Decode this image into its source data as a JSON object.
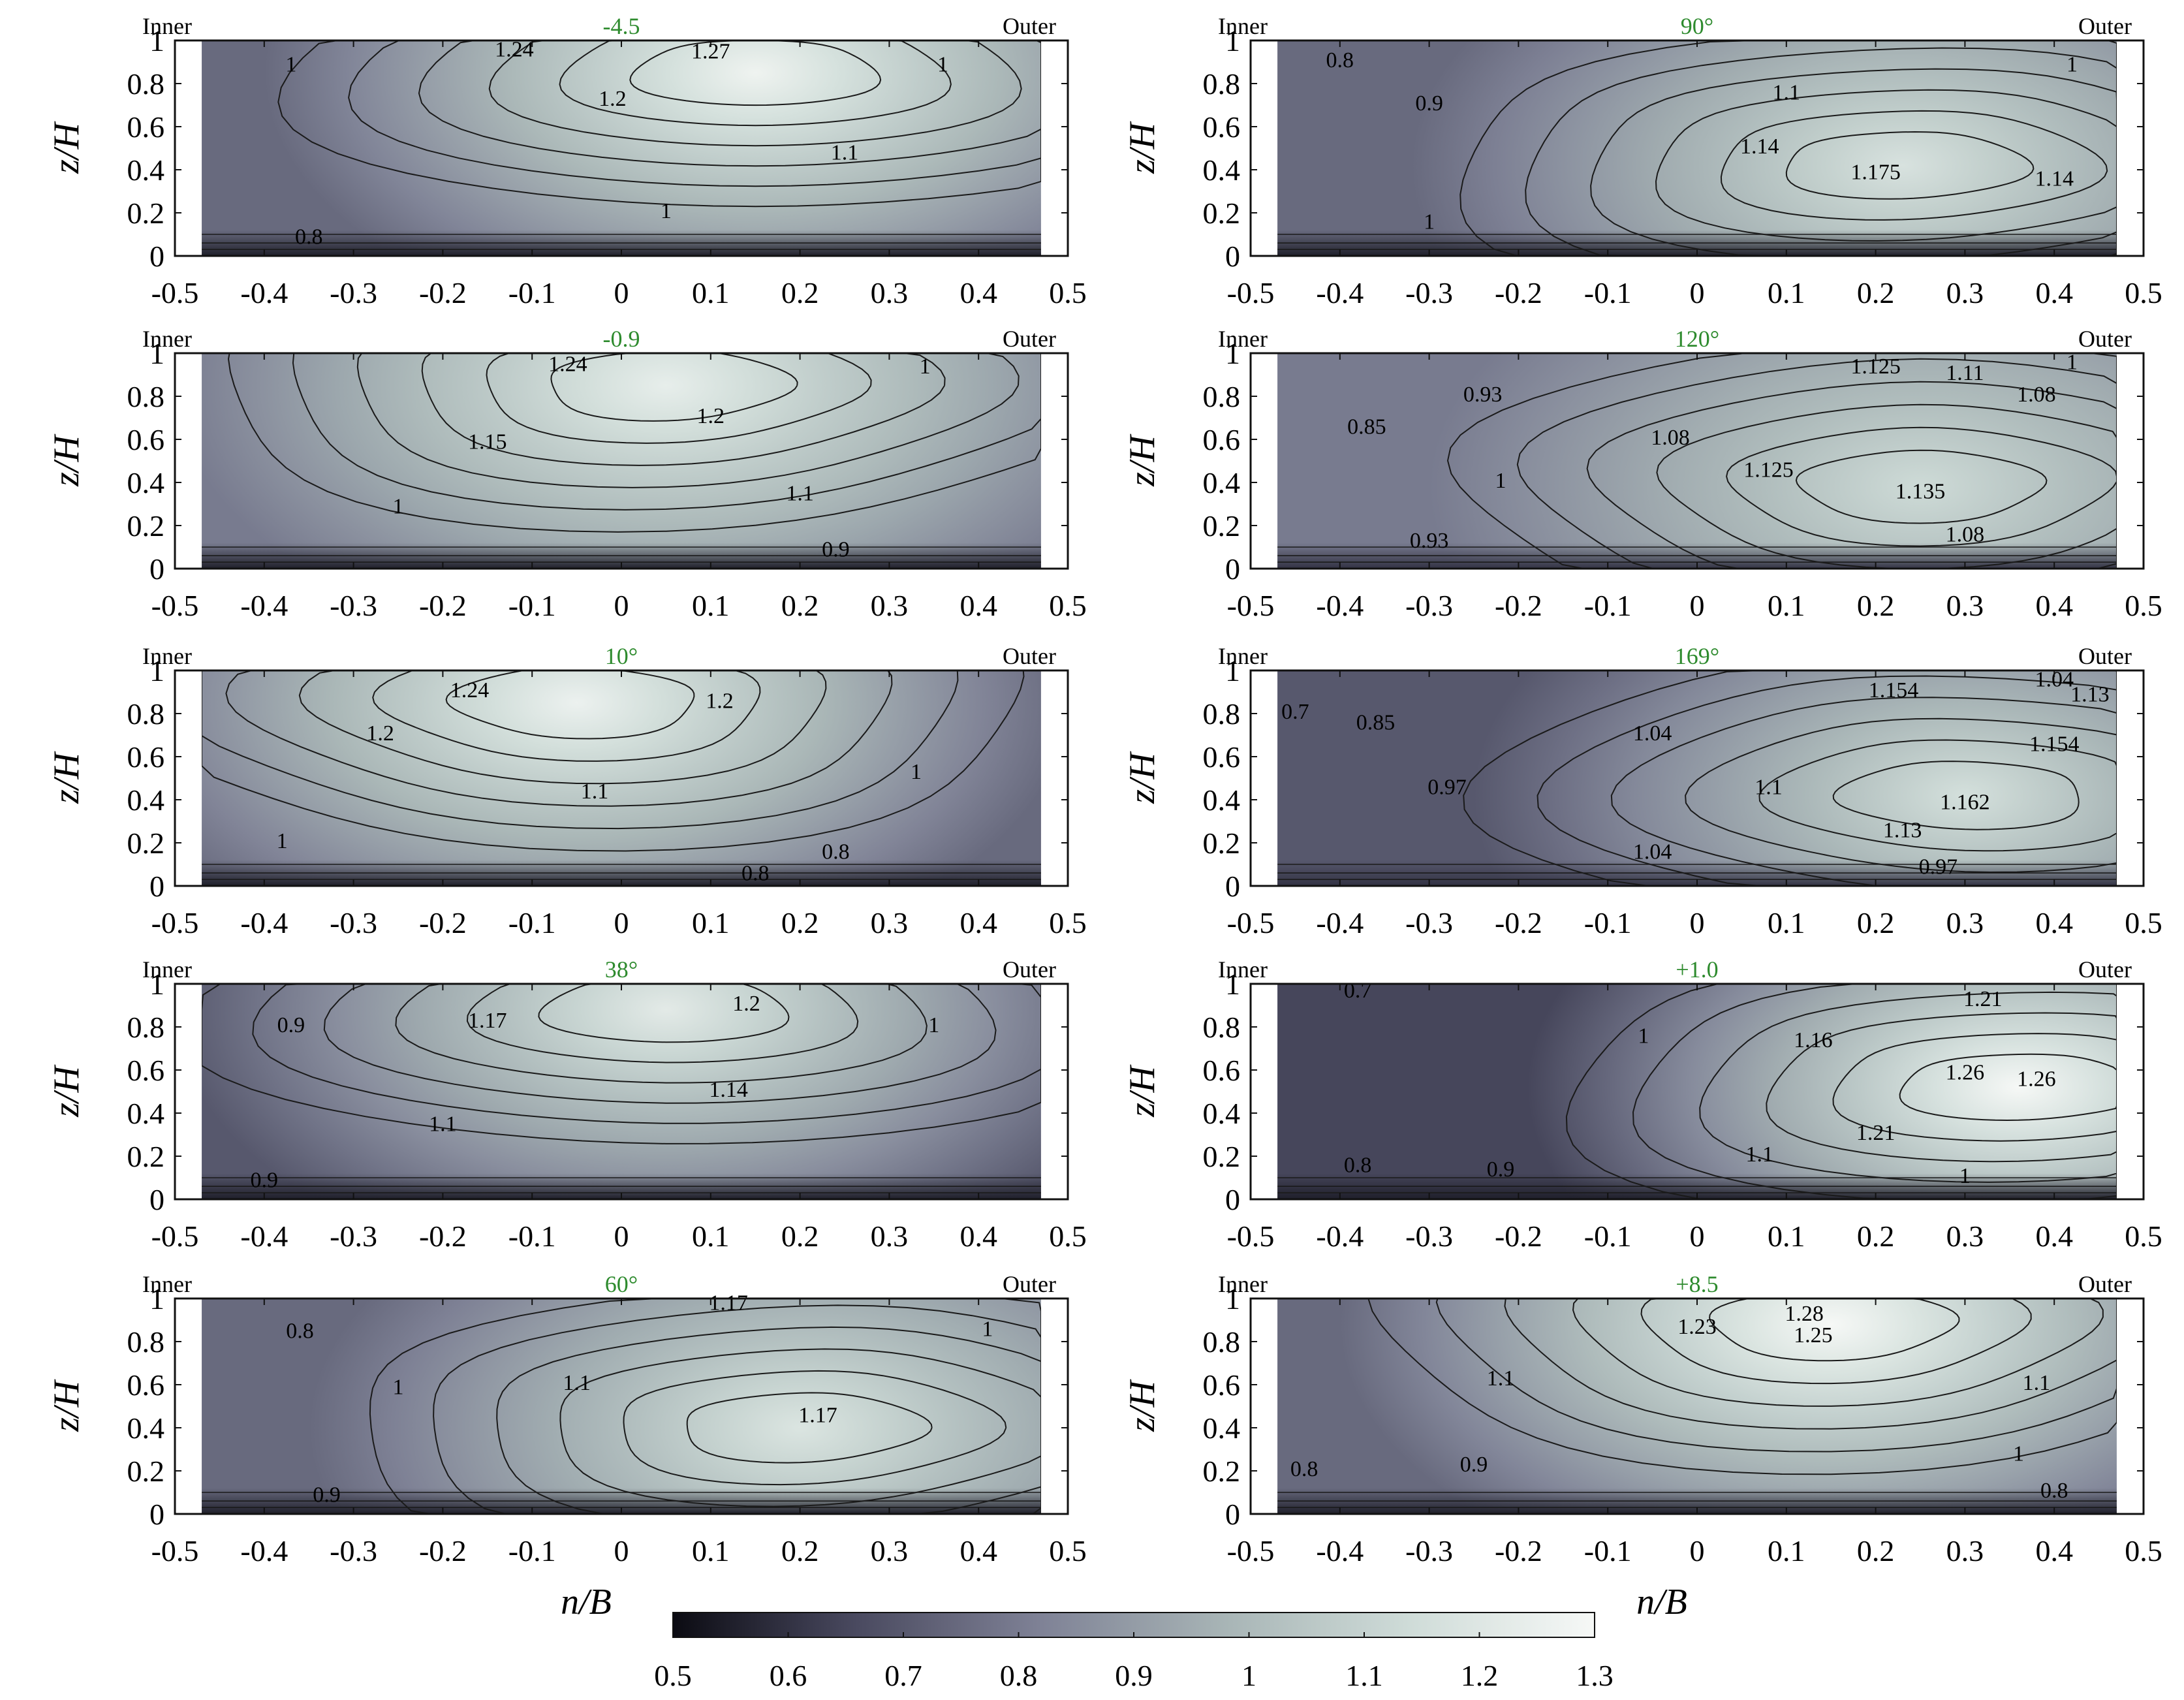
{
  "chart_data": {
    "type": "heatmap",
    "side_labels": {
      "left": "Inner",
      "right": "Outer"
    },
    "xlabel": "n/B",
    "ylabel": "z/H",
    "xlim": [
      -0.5,
      0.5
    ],
    "ylim": [
      0,
      1
    ],
    "x_ticks": [
      "-0.5",
      "-0.4",
      "-0.3",
      "-0.2",
      "-0.1",
      "0",
      "0.1",
      "0.2",
      "0.3",
      "0.4",
      "0.5"
    ],
    "y_ticks": [
      "0",
      "0.2",
      "0.4",
      "0.6",
      "0.8",
      "1"
    ],
    "title_color": "#2e8b2e",
    "colorbar": {
      "range": [
        0.5,
        1.3
      ],
      "ticks": [
        "0.5",
        "0.6",
        "0.7",
        "0.8",
        "0.9",
        "1",
        "1.1",
        "1.2",
        "1.3"
      ],
      "colors": [
        "#0b0b12",
        "#4a4a60",
        "#7f8296",
        "#a8b5b6",
        "#cfdcd8",
        "#f6f8f6"
      ]
    },
    "panels": [
      {
        "title": "-4.5",
        "core_x": 0.15,
        "core_z": 0.85,
        "core_value": 1.27,
        "edge_value": 0.75,
        "bed_value": 0.55,
        "contour_labels": [
          {
            "text": "1.24",
            "x": -0.12,
            "z": 0.95
          },
          {
            "text": "1.27",
            "x": 0.1,
            "z": 0.94
          },
          {
            "text": "1",
            "x": -0.37,
            "z": 0.88
          },
          {
            "text": "1",
            "x": 0.36,
            "z": 0.88
          },
          {
            "text": "1.2",
            "x": -0.01,
            "z": 0.72
          },
          {
            "text": "1.1",
            "x": 0.25,
            "z": 0.47
          },
          {
            "text": "1",
            "x": 0.05,
            "z": 0.2
          },
          {
            "text": "0.8",
            "x": -0.35,
            "z": 0.08
          }
        ]
      },
      {
        "title": "90°",
        "core_x": 0.23,
        "core_z": 0.42,
        "core_value": 1.175,
        "edge_value": 0.75,
        "bed_value": 0.55,
        "contour_labels": [
          {
            "text": "0.8",
            "x": -0.4,
            "z": 0.9
          },
          {
            "text": "0.9",
            "x": -0.3,
            "z": 0.7
          },
          {
            "text": "1.1",
            "x": 0.1,
            "z": 0.75
          },
          {
            "text": "1.14",
            "x": 0.07,
            "z": 0.5
          },
          {
            "text": "1.175",
            "x": 0.2,
            "z": 0.38
          },
          {
            "text": "1.14",
            "x": 0.4,
            "z": 0.35
          },
          {
            "text": "1",
            "x": 0.42,
            "z": 0.88
          },
          {
            "text": "1",
            "x": -0.3,
            "z": 0.15
          }
        ]
      },
      {
        "title": "-0.9",
        "core_x": 0.05,
        "core_z": 0.85,
        "core_value": 1.24,
        "edge_value": 0.8,
        "bed_value": 0.55,
        "contour_labels": [
          {
            "text": "1.24",
            "x": -0.06,
            "z": 0.94
          },
          {
            "text": "1.2",
            "x": 0.1,
            "z": 0.7
          },
          {
            "text": "1.15",
            "x": -0.15,
            "z": 0.58
          },
          {
            "text": "1.1",
            "x": 0.2,
            "z": 0.34
          },
          {
            "text": "1",
            "x": -0.25,
            "z": 0.28
          },
          {
            "text": "1",
            "x": 0.34,
            "z": 0.93
          },
          {
            "text": "0.9",
            "x": 0.24,
            "z": 0.08
          }
        ]
      },
      {
        "title": "120°",
        "core_x": 0.25,
        "core_z": 0.38,
        "core_value": 1.135,
        "edge_value": 0.8,
        "bed_value": 0.6,
        "contour_labels": [
          {
            "text": "0.85",
            "x": -0.37,
            "z": 0.65
          },
          {
            "text": "0.93",
            "x": -0.24,
            "z": 0.8
          },
          {
            "text": "1.125",
            "x": 0.2,
            "z": 0.93
          },
          {
            "text": "1.11",
            "x": 0.3,
            "z": 0.9
          },
          {
            "text": "1.08",
            "x": 0.38,
            "z": 0.8
          },
          {
            "text": "1.08",
            "x": -0.03,
            "z": 0.6
          },
          {
            "text": "1.125",
            "x": 0.08,
            "z": 0.45
          },
          {
            "text": "1.135",
            "x": 0.25,
            "z": 0.35
          },
          {
            "text": "1",
            "x": -0.22,
            "z": 0.4
          },
          {
            "text": "0.93",
            "x": -0.3,
            "z": 0.12
          },
          {
            "text": "1.08",
            "x": 0.3,
            "z": 0.15
          },
          {
            "text": "1",
            "x": 0.42,
            "z": 0.95
          }
        ]
      },
      {
        "title": "10°",
        "core_x": -0.05,
        "core_z": 0.85,
        "core_value": 1.26,
        "edge_value": 0.75,
        "bed_value": 0.55,
        "contour_labels": [
          {
            "text": "1.24",
            "x": -0.17,
            "z": 0.9
          },
          {
            "text": "1.2",
            "x": 0.11,
            "z": 0.85
          },
          {
            "text": "1.2",
            "x": -0.27,
            "z": 0.7
          },
          {
            "text": "1.1",
            "x": -0.03,
            "z": 0.43
          },
          {
            "text": "1",
            "x": 0.33,
            "z": 0.52
          },
          {
            "text": "1",
            "x": -0.38,
            "z": 0.2
          },
          {
            "text": "0.8",
            "x": 0.24,
            "z": 0.15
          },
          {
            "text": "0.8",
            "x": 0.15,
            "z": 0.05
          }
        ]
      },
      {
        "title": "169°",
        "core_x": 0.3,
        "core_z": 0.42,
        "core_value": 1.162,
        "edge_value": 0.7,
        "bed_value": 0.6,
        "contour_labels": [
          {
            "text": "0.7",
            "x": -0.45,
            "z": 0.8
          },
          {
            "text": "0.85",
            "x": -0.36,
            "z": 0.75
          },
          {
            "text": "0.97",
            "x": -0.28,
            "z": 0.45
          },
          {
            "text": "1.04",
            "x": -0.05,
            "z": 0.7
          },
          {
            "text": "1.1",
            "x": 0.08,
            "z": 0.45
          },
          {
            "text": "1.154",
            "x": 0.22,
            "z": 0.9
          },
          {
            "text": "1.04",
            "x": 0.4,
            "z": 0.95
          },
          {
            "text": "1.13",
            "x": 0.44,
            "z": 0.88
          },
          {
            "text": "1.154",
            "x": 0.4,
            "z": 0.65
          },
          {
            "text": "1.162",
            "x": 0.3,
            "z": 0.38
          },
          {
            "text": "1.13",
            "x": 0.23,
            "z": 0.25
          },
          {
            "text": "1.04",
            "x": -0.05,
            "z": 0.15
          },
          {
            "text": "0.97",
            "x": 0.27,
            "z": 0.08
          }
        ]
      },
      {
        "title": "38°",
        "core_x": 0.05,
        "core_z": 0.88,
        "core_value": 1.22,
        "edge_value": 0.7,
        "bed_value": 0.55,
        "contour_labels": [
          {
            "text": "0.9",
            "x": -0.37,
            "z": 0.8
          },
          {
            "text": "1.17",
            "x": -0.15,
            "z": 0.82
          },
          {
            "text": "1.2",
            "x": 0.14,
            "z": 0.9
          },
          {
            "text": "1",
            "x": 0.35,
            "z": 0.8
          },
          {
            "text": "1.14",
            "x": 0.12,
            "z": 0.5
          },
          {
            "text": "1.1",
            "x": -0.2,
            "z": 0.34
          },
          {
            "text": "0.9",
            "x": -0.4,
            "z": 0.08
          }
        ]
      },
      {
        "title": "+1.0",
        "core_x": 0.36,
        "core_z": 0.52,
        "core_value": 1.3,
        "edge_value": 0.65,
        "bed_value": 0.55,
        "contour_labels": [
          {
            "text": "0.7",
            "x": -0.38,
            "z": 0.96
          },
          {
            "text": "1",
            "x": -0.06,
            "z": 0.75
          },
          {
            "text": "1.16",
            "x": 0.13,
            "z": 0.73
          },
          {
            "text": "1.21",
            "x": 0.32,
            "z": 0.92
          },
          {
            "text": "1.26",
            "x": 0.3,
            "z": 0.58
          },
          {
            "text": "1.26",
            "x": 0.38,
            "z": 0.55
          },
          {
            "text": "1.21",
            "x": 0.2,
            "z": 0.3
          },
          {
            "text": "1.1",
            "x": 0.07,
            "z": 0.2
          },
          {
            "text": "0.9",
            "x": -0.22,
            "z": 0.13
          },
          {
            "text": "0.8",
            "x": -0.38,
            "z": 0.15
          },
          {
            "text": "1",
            "x": 0.3,
            "z": 0.1
          }
        ]
      },
      {
        "title": "60°",
        "core_x": 0.2,
        "core_z": 0.4,
        "core_value": 1.19,
        "edge_value": 0.75,
        "bed_value": 0.55,
        "contour_labels": [
          {
            "text": "0.8",
            "x": -0.36,
            "z": 0.84
          },
          {
            "text": "1",
            "x": -0.25,
            "z": 0.58
          },
          {
            "text": "1.1",
            "x": -0.05,
            "z": 0.6
          },
          {
            "text": "1.17",
            "x": 0.12,
            "z": 0.97
          },
          {
            "text": "1.17",
            "x": 0.22,
            "z": 0.45
          },
          {
            "text": "1",
            "x": 0.41,
            "z": 0.85
          },
          {
            "text": "0.9",
            "x": -0.33,
            "z": 0.08
          }
        ]
      },
      {
        "title": "+8.5",
        "core_x": 0.15,
        "core_z": 0.88,
        "core_value": 1.3,
        "edge_value": 0.75,
        "bed_value": 0.55,
        "contour_labels": [
          {
            "text": "1.28",
            "x": 0.12,
            "z": 0.92
          },
          {
            "text": "1.25",
            "x": 0.13,
            "z": 0.82
          },
          {
            "text": "1.23",
            "x": 0.0,
            "z": 0.86
          },
          {
            "text": "1.1",
            "x": -0.22,
            "z": 0.62
          },
          {
            "text": "1.1",
            "x": 0.38,
            "z": 0.6
          },
          {
            "text": "1",
            "x": 0.36,
            "z": 0.27
          },
          {
            "text": "0.9",
            "x": -0.25,
            "z": 0.22
          },
          {
            "text": "0.8",
            "x": -0.44,
            "z": 0.2
          },
          {
            "text": "0.8",
            "x": 0.4,
            "z": 0.1
          }
        ]
      }
    ]
  }
}
